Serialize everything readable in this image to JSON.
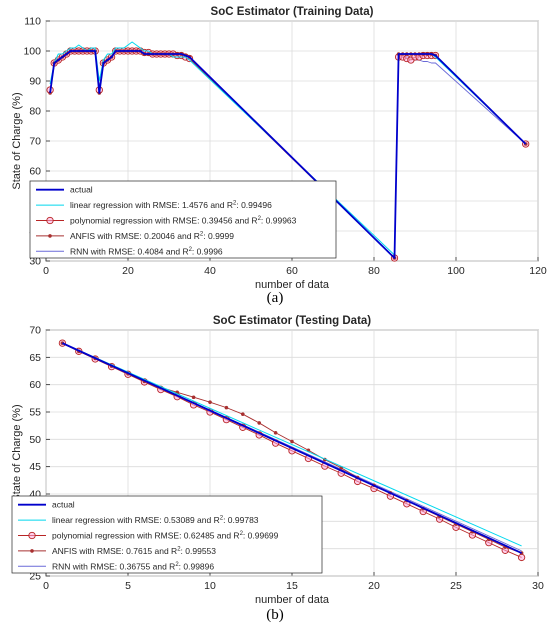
{
  "panels": [
    {
      "caption": "(a)"
    },
    {
      "caption": "(b)"
    }
  ],
  "chart_data": [
    {
      "type": "line",
      "title": "SoC Estimator (Training Data)",
      "xlabel": "number of data",
      "ylabel": "State of Charge (%)",
      "xlim": [
        0,
        120
      ],
      "ylim": [
        30,
        110
      ],
      "xticks": [
        0,
        20,
        40,
        60,
        80,
        100,
        120
      ],
      "yticks": [
        30,
        40,
        50,
        60,
        70,
        80,
        90,
        100,
        110
      ],
      "grid": true,
      "legend_position": "bottom-left",
      "series": [
        {
          "name": "actual",
          "color": "#0000cc",
          "marker": "none",
          "x": [
            1,
            2,
            3,
            4,
            5,
            6,
            7,
            8,
            9,
            10,
            11,
            12,
            13,
            14,
            15,
            16,
            17,
            18,
            19,
            20,
            21,
            22,
            23,
            24,
            25,
            26,
            27,
            28,
            29,
            30,
            31,
            32,
            33,
            34,
            35,
            85,
            86,
            87,
            88,
            89,
            90,
            91,
            92,
            93,
            94,
            95,
            117
          ],
          "y": [
            86,
            96,
            97,
            98,
            99,
            100,
            100,
            100,
            100,
            100,
            100,
            100,
            86,
            96,
            97,
            98,
            100,
            100,
            100,
            100,
            100,
            100,
            100,
            99,
            99,
            99,
            99,
            99,
            99,
            99,
            99,
            99,
            99,
            98.5,
            98,
            31,
            99,
            99,
            99,
            99,
            99,
            99,
            99,
            99,
            99,
            98.5,
            69
          ]
        },
        {
          "name": "linear regression with RMSE: 1.4576 and R²: 0.99496",
          "color": "#00d8ee",
          "marker": "none",
          "x": [
            1,
            2,
            3,
            4,
            5,
            6,
            7,
            8,
            9,
            10,
            11,
            12,
            13,
            14,
            15,
            16,
            17,
            18,
            19,
            20,
            21,
            22,
            23,
            24,
            25,
            26,
            27,
            28,
            29,
            30,
            31,
            32,
            33,
            34,
            35,
            85,
            86,
            87,
            88,
            89,
            90,
            91,
            92,
            93,
            94,
            95,
            117
          ],
          "y": [
            89,
            96,
            99,
            99,
            100,
            101,
            101,
            102,
            101,
            100,
            101,
            101,
            90,
            97,
            99,
            99,
            101,
            101,
            101,
            102,
            103,
            102,
            101,
            100,
            100,
            99,
            99,
            99,
            99,
            99,
            98,
            98,
            98,
            98,
            97,
            32,
            99,
            99,
            99,
            99,
            99,
            99,
            99,
            99,
            99,
            98,
            69
          ]
        },
        {
          "name": "polynomial regression with RMSE: 0.39456 and R²: 0.99963",
          "color": "#b82525",
          "marker": "circle",
          "x": [
            1,
            2,
            3,
            4,
            5,
            6,
            7,
            8,
            9,
            10,
            11,
            12,
            13,
            14,
            15,
            16,
            17,
            18,
            19,
            20,
            21,
            22,
            23,
            24,
            25,
            26,
            27,
            28,
            29,
            30,
            31,
            32,
            33,
            34,
            35,
            85,
            86,
            87,
            88,
            89,
            90,
            91,
            92,
            93,
            94,
            95,
            117
          ],
          "y": [
            87,
            96,
            97,
            98,
            99,
            100,
            100,
            100,
            100,
            100,
            100,
            100,
            87,
            96,
            97,
            98,
            100,
            100,
            100,
            100,
            100,
            100,
            100,
            99.5,
            99.5,
            99,
            99,
            99,
            99,
            99,
            99,
            98.5,
            98.5,
            98,
            97.5,
            31,
            98,
            98,
            97.5,
            97,
            98,
            98,
            98.5,
            98.5,
            98.5,
            98.5,
            69
          ]
        },
        {
          "name": "ANFIS with RMSE: 0.20046 and R²: 0.9999",
          "color": "#a83030",
          "marker": "dot",
          "x": [
            1,
            2,
            3,
            4,
            5,
            6,
            7,
            8,
            9,
            10,
            11,
            12,
            13,
            14,
            15,
            16,
            17,
            18,
            19,
            20,
            21,
            22,
            23,
            24,
            25,
            26,
            27,
            28,
            29,
            30,
            31,
            32,
            33,
            34,
            35,
            85,
            86,
            87,
            88,
            89,
            90,
            91,
            92,
            93,
            94,
            95,
            117
          ],
          "y": [
            86,
            96,
            97,
            98,
            99,
            100,
            100,
            100,
            100,
            100,
            100,
            100,
            86,
            96,
            97,
            98,
            100,
            100,
            100,
            100,
            100,
            100,
            100,
            99,
            99,
            99,
            99,
            99,
            99,
            99,
            99,
            99,
            99,
            98.5,
            98,
            31,
            99,
            99,
            99,
            99,
            99,
            99,
            99,
            99,
            99,
            98.5,
            69
          ]
        },
        {
          "name": "RNN with RMSE: 0.4084 and R²: 0.9996",
          "color": "#6a6ad8",
          "marker": "none",
          "x": [
            1,
            2,
            3,
            4,
            5,
            6,
            7,
            8,
            9,
            10,
            11,
            12,
            13,
            14,
            15,
            16,
            17,
            18,
            19,
            20,
            21,
            22,
            23,
            24,
            25,
            26,
            27,
            28,
            29,
            30,
            31,
            32,
            33,
            34,
            35,
            85,
            86,
            87,
            88,
            89,
            90,
            91,
            92,
            93,
            94,
            95,
            117
          ],
          "y": [
            87,
            95,
            97,
            98,
            99,
            99.5,
            100,
            100,
            100,
            100,
            100,
            100,
            88,
            95,
            97,
            98,
            99.5,
            100,
            100,
            100,
            100,
            100,
            100,
            99,
            99,
            99,
            99,
            99,
            98.5,
            98.5,
            98.5,
            98.5,
            98,
            98,
            97.5,
            31,
            98,
            98,
            98,
            98,
            97,
            97,
            96.5,
            96.5,
            96,
            96,
            69
          ]
        }
      ]
    },
    {
      "type": "line",
      "title": "SoC Estimator (Testing Data)",
      "xlabel": "number of data",
      "ylabel": "State of Charge (%)",
      "xlim": [
        0,
        30
      ],
      "ylim": [
        25,
        70
      ],
      "xticks": [
        0,
        5,
        10,
        15,
        20,
        25,
        30
      ],
      "yticks": [
        25,
        30,
        35,
        40,
        45,
        50,
        55,
        60,
        65,
        70
      ],
      "grid": true,
      "legend_position": "bottom-left",
      "series": [
        {
          "name": "actual",
          "color": "#0000cc",
          "marker": "none",
          "x": [
            1,
            29
          ],
          "y": [
            67.6,
            29.2
          ]
        },
        {
          "name": "linear regression with RMSE: 0.53089 and R²: 0.99783",
          "color": "#00d8ee",
          "marker": "none",
          "x": [
            1,
            29
          ],
          "y": [
            67.6,
            30.5
          ]
        },
        {
          "name": "polynomial regression with RMSE: 0.62485 and R²: 0.99699",
          "color": "#b82525",
          "marker": "circle",
          "x": [
            1,
            2,
            3,
            4,
            5,
            6,
            7,
            8,
            9,
            10,
            11,
            12,
            13,
            14,
            15,
            16,
            17,
            18,
            19,
            20,
            21,
            22,
            23,
            24,
            25,
            26,
            27,
            28,
            29
          ],
          "y": [
            67.6,
            66.1,
            64.7,
            63.3,
            61.9,
            60.5,
            59.1,
            57.8,
            56.3,
            55.0,
            53.6,
            52.2,
            50.8,
            49.3,
            47.9,
            46.5,
            45.1,
            43.8,
            42.3,
            41.0,
            39.6,
            38.2,
            36.8,
            35.4,
            33.9,
            32.5,
            31.1,
            29.7,
            28.4
          ]
        },
        {
          "name": "ANFIS with RMSE: 0.7615 and R²: 0.99553",
          "color": "#a83030",
          "marker": "dot",
          "x": [
            1,
            2,
            3,
            4,
            5,
            6,
            7,
            8,
            9,
            10,
            11,
            12,
            13,
            14,
            15,
            16,
            17,
            18,
            19,
            20,
            21,
            22,
            23,
            24,
            25,
            26,
            27,
            28,
            29
          ],
          "y": [
            67.6,
            66.1,
            64.8,
            63.4,
            62.0,
            60.6,
            59.5,
            58.6,
            57.7,
            56.8,
            55.8,
            54.6,
            53.0,
            51.2,
            49.6,
            48.0,
            46.3,
            44.8,
            43.0,
            41.6,
            40.2,
            38.8,
            37.3,
            35.9,
            34.5,
            33.1,
            31.7,
            30.3,
            29.2
          ]
        },
        {
          "name": "RNN with RMSE: 0.36755 and R²: 0.99896",
          "color": "#6a6ad8",
          "marker": "none",
          "x": [
            1,
            29
          ],
          "y": [
            67.6,
            29.6
          ]
        }
      ]
    }
  ]
}
